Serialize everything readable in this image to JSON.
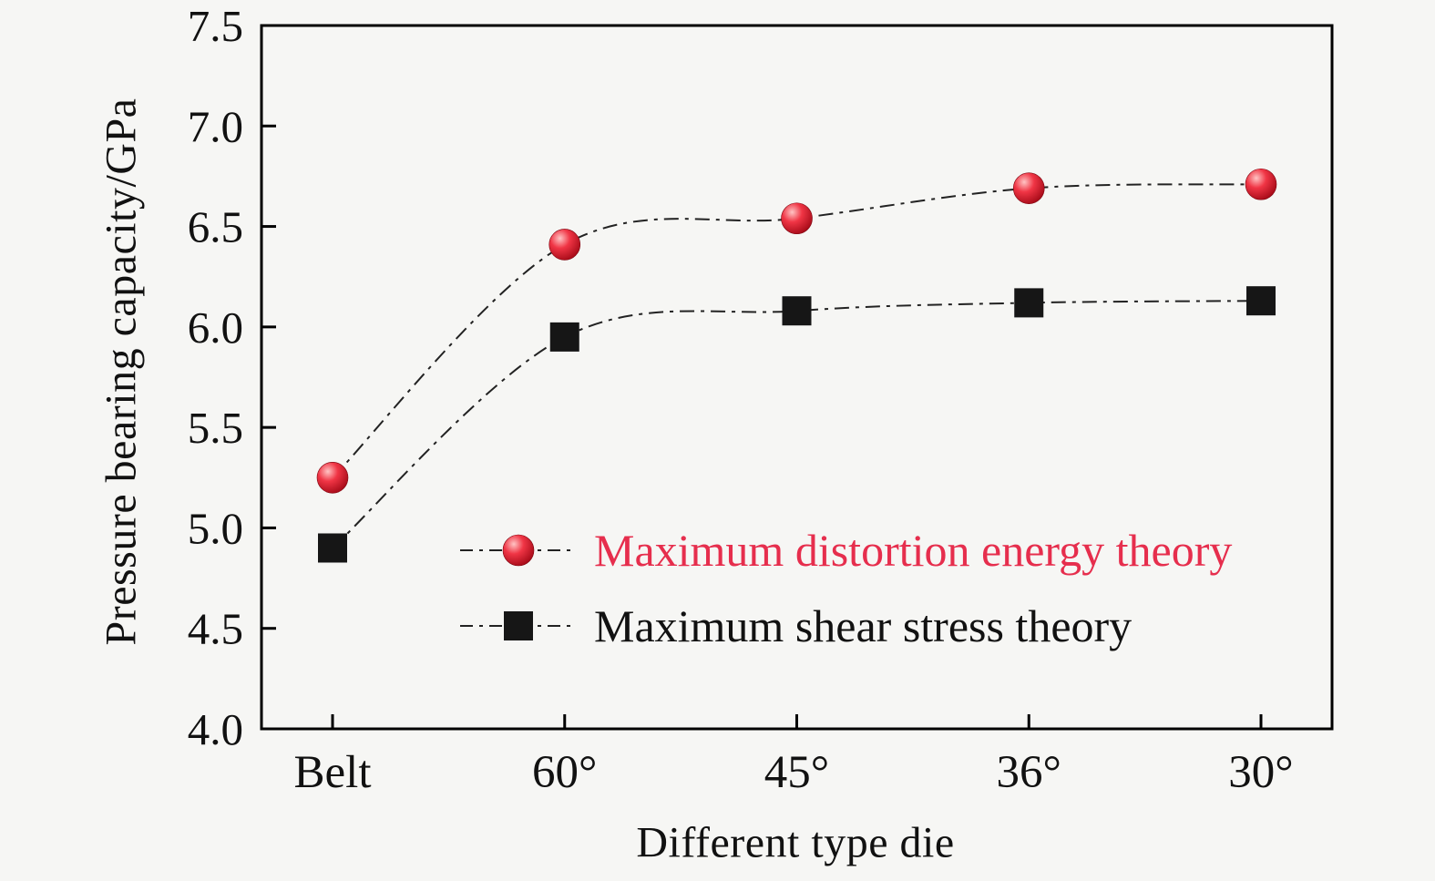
{
  "figure": {
    "background": "#f6f6f4"
  },
  "chart_data": {
    "type": "line",
    "title": "",
    "xlabel": "Different type die",
    "ylabel": "Pressure bearing capacity/GPa",
    "categories": [
      "Belt",
      "60°",
      "45°",
      "36°",
      "30°"
    ],
    "series": [
      {
        "name": "Maximum distortion energy theory",
        "marker": "circle",
        "color": "#ed1c24",
        "label_color": "#e62e4d",
        "gradient": [
          "#ffc4c4",
          "#f03545",
          "#9c0512"
        ],
        "values": [
          5.25,
          6.41,
          6.54,
          6.69,
          6.71
        ]
      },
      {
        "name": "Maximum shear stress theory",
        "marker": "square",
        "color": "#161616",
        "label_color": "#111111",
        "values": [
          4.9,
          5.95,
          6.08,
          6.12,
          6.13
        ]
      }
    ],
    "ylim": [
      4.0,
      7.5
    ],
    "yticks": [
      "4.0",
      "4.5",
      "5.0",
      "5.5",
      "6.0",
      "6.5",
      "7.0",
      "7.5"
    ],
    "grid": false,
    "legend_position": "inside-lower-center",
    "line_style": "dash-dot",
    "line_color": "#222222",
    "axis_color": "#000000"
  }
}
